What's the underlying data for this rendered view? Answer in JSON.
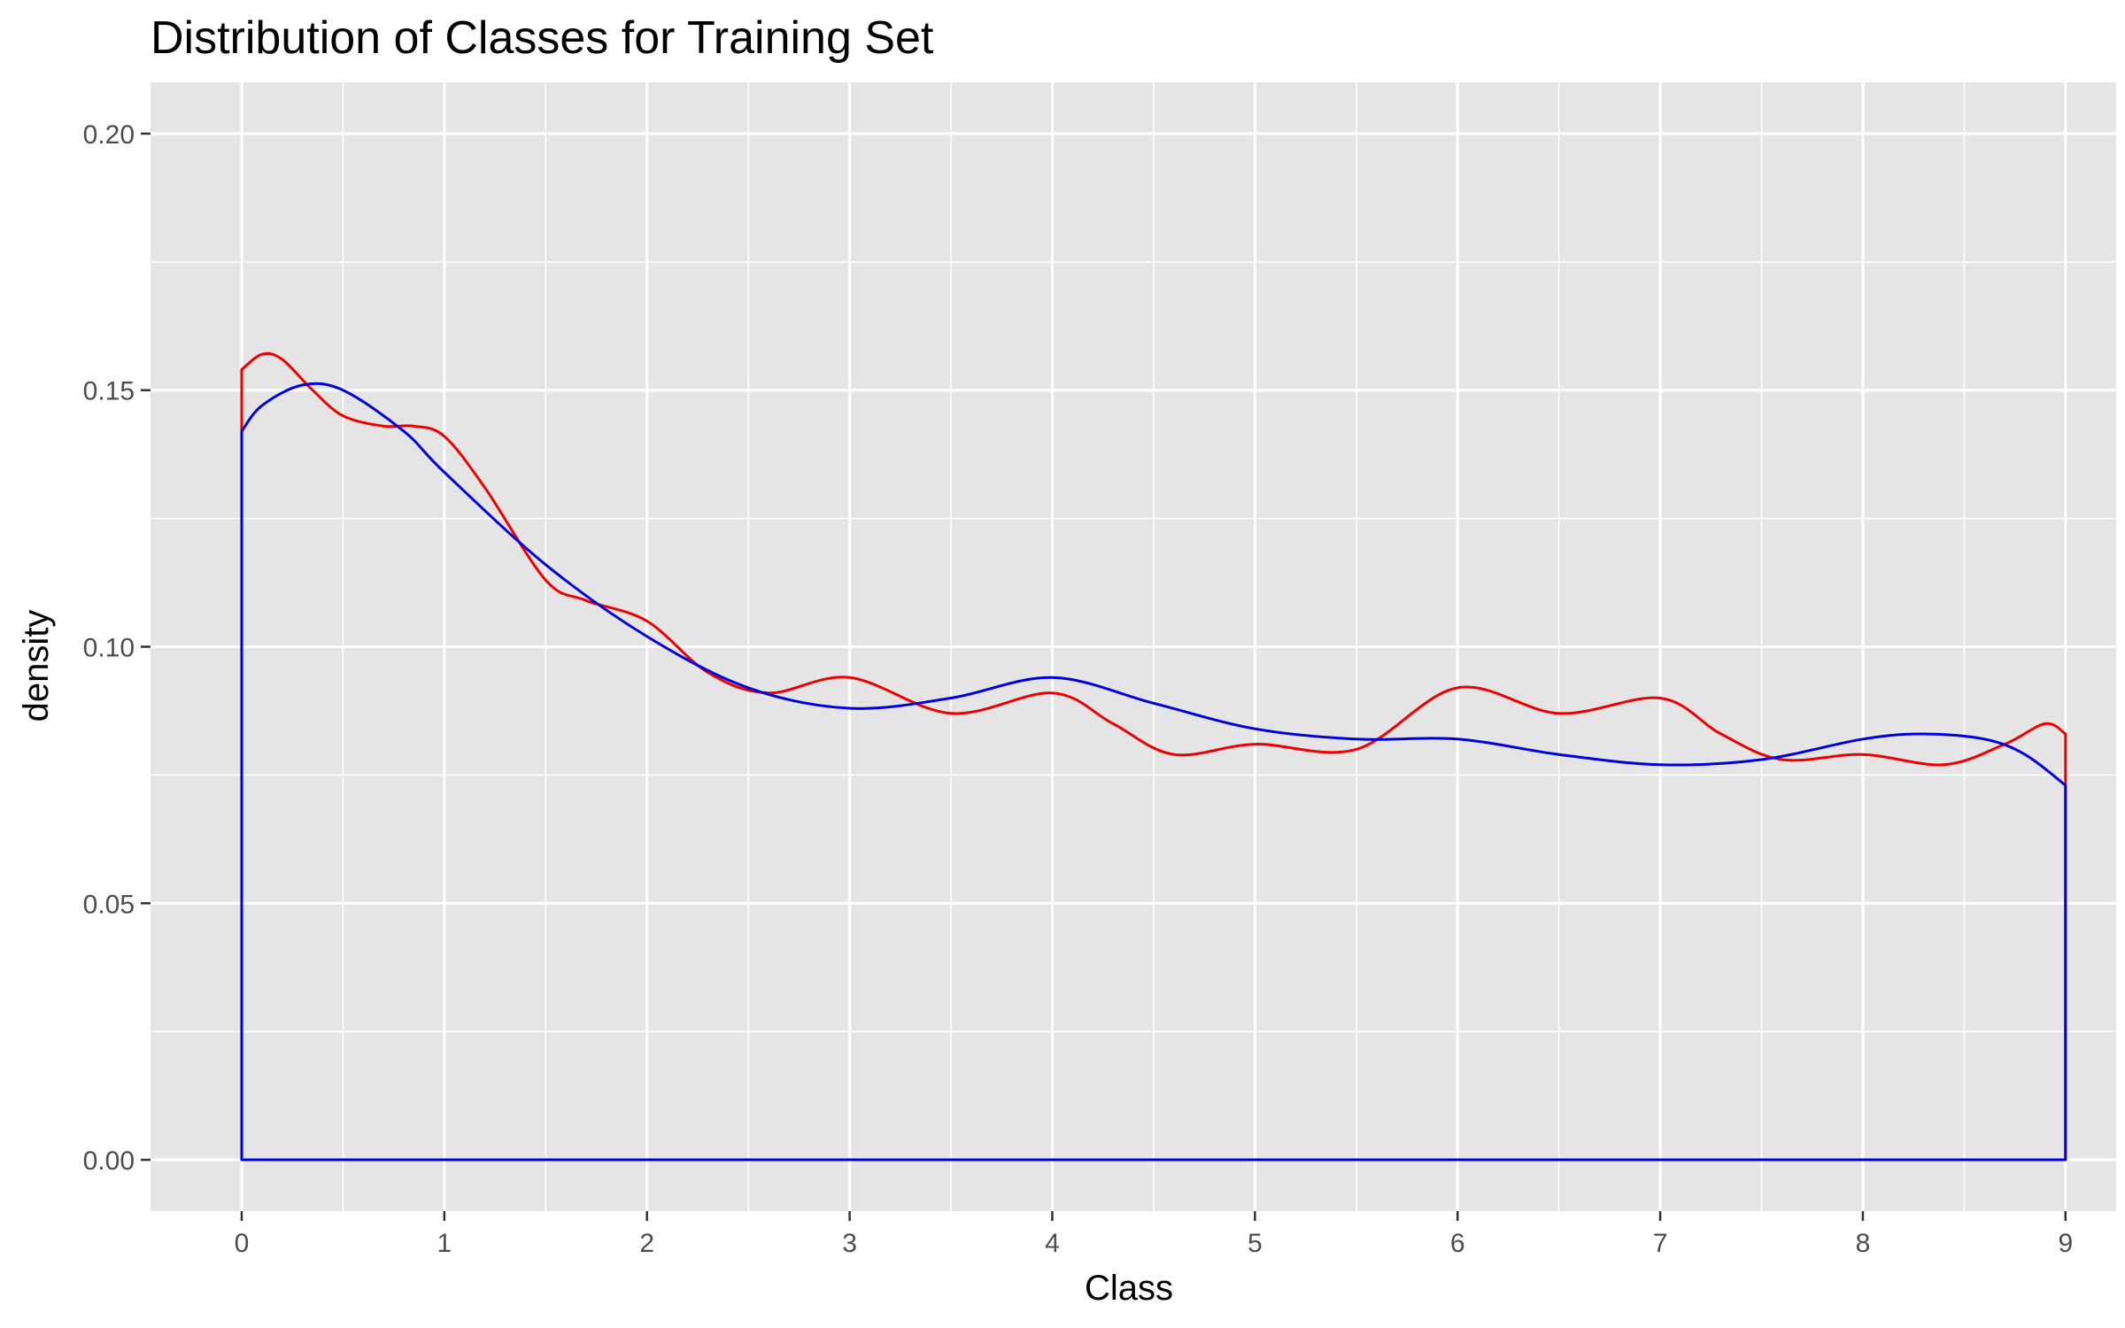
{
  "chart_data": {
    "type": "line",
    "title": "Distribution of Classes for Training Set",
    "xlabel": "Class",
    "ylabel": "density",
    "xlim": [
      -0.45,
      9.25
    ],
    "ylim": [
      -0.01,
      0.21
    ],
    "x_ticks": [
      "0",
      "1",
      "2",
      "3",
      "4",
      "5",
      "6",
      "7",
      "8",
      "9"
    ],
    "y_ticks": [
      "0.00",
      "0.05",
      "0.10",
      "0.15",
      "0.20"
    ],
    "grid": true,
    "legend": "none",
    "background": "#e5e5e5",
    "grid_color": "#ffffff",
    "series": [
      {
        "color": "#ee0000",
        "x": [
          0,
          0.1,
          0.2,
          0.35,
          0.5,
          0.7,
          0.85,
          1.0,
          1.2,
          1.5,
          1.7,
          2.0,
          2.3,
          2.6,
          3.0,
          3.5,
          4.0,
          4.3,
          4.6,
          5.0,
          5.5,
          6.0,
          6.5,
          7.0,
          7.3,
          7.6,
          8.0,
          8.4,
          8.7,
          8.9,
          9.0
        ],
        "y": [
          0.154,
          0.157,
          0.156,
          0.15,
          0.145,
          0.143,
          0.143,
          0.141,
          0.131,
          0.113,
          0.109,
          0.105,
          0.095,
          0.091,
          0.094,
          0.087,
          0.091,
          0.085,
          0.079,
          0.081,
          0.08,
          0.092,
          0.087,
          0.09,
          0.083,
          0.078,
          0.079,
          0.077,
          0.081,
          0.085,
          0.083
        ]
      },
      {
        "color": "#0000dd",
        "x": [
          0,
          0.1,
          0.3,
          0.5,
          0.8,
          1.0,
          1.5,
          2.0,
          2.5,
          3.0,
          3.5,
          4.0,
          4.5,
          5.0,
          5.5,
          6.0,
          6.5,
          7.0,
          7.5,
          8.0,
          8.3,
          8.6,
          8.8,
          9.0
        ],
        "y": [
          0.142,
          0.147,
          0.151,
          0.15,
          0.142,
          0.134,
          0.116,
          0.102,
          0.092,
          0.088,
          0.09,
          0.094,
          0.089,
          0.084,
          0.082,
          0.082,
          0.079,
          0.077,
          0.078,
          0.082,
          0.083,
          0.082,
          0.079,
          0.073
        ]
      }
    ]
  }
}
